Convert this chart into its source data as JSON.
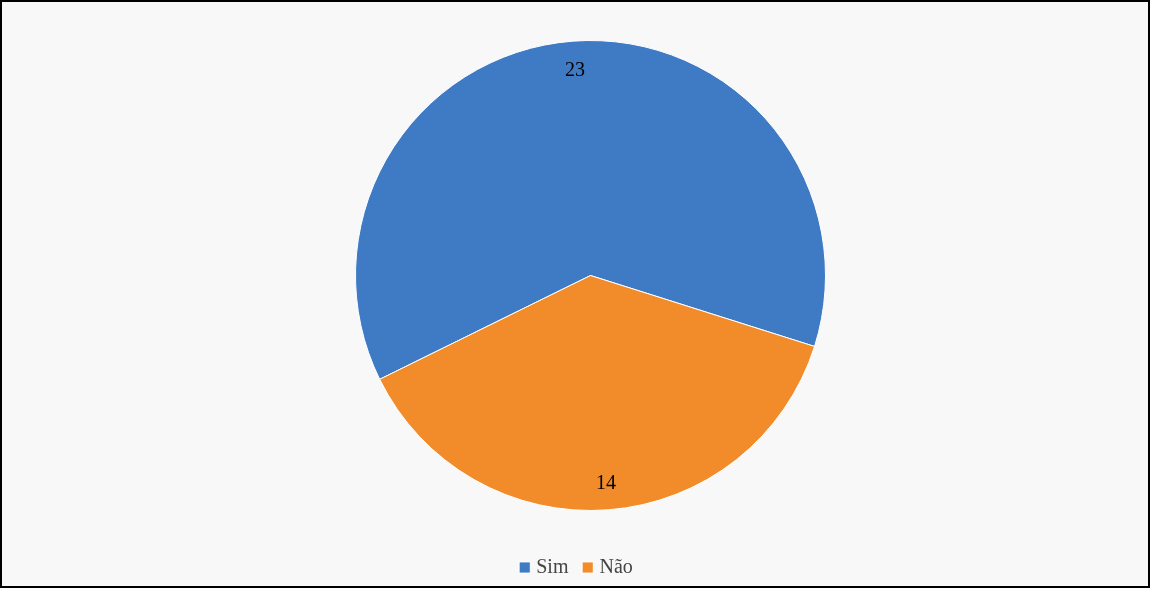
{
  "chart_data": {
    "type": "pie",
    "categories": [
      "Sim",
      "Não"
    ],
    "values": [
      23,
      14
    ],
    "colors": [
      "#3f7bc4",
      "#f28c2a"
    ],
    "data_labels": true,
    "legend": "bottom"
  }
}
